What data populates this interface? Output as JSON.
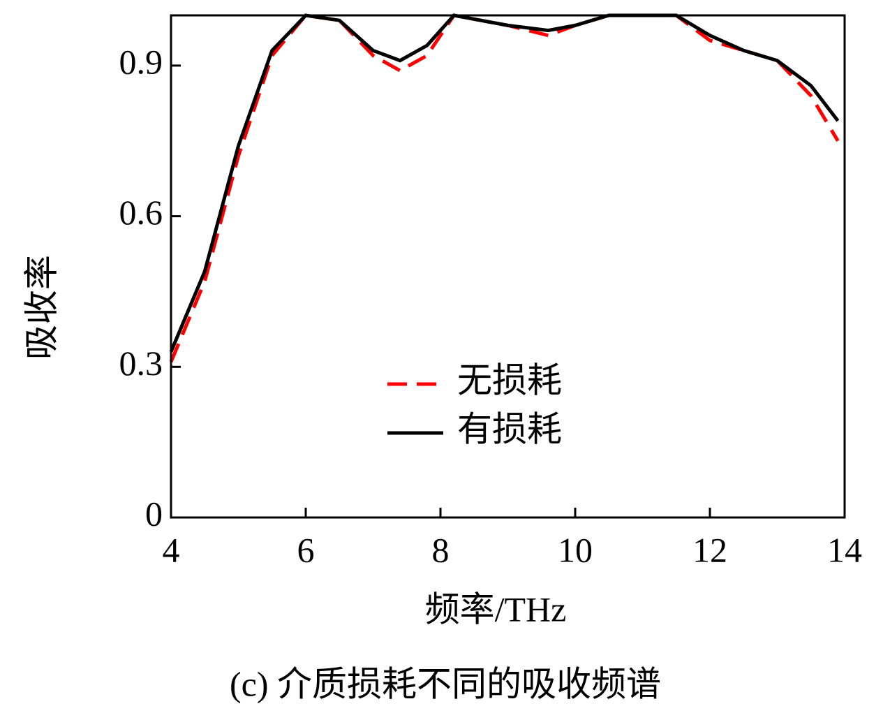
{
  "chart_data": {
    "type": "line",
    "title": "(c) 介质损耗不同的吸收频谱",
    "x_label": "频率/THz",
    "y_label": "吸收率",
    "x": [
      4,
      4.5,
      5,
      5.5,
      6,
      6.5,
      7,
      7.4,
      7.8,
      8.2,
      8.6,
      9,
      9.6,
      10,
      10.5,
      11,
      11.5,
      12,
      12.5,
      13,
      13.5,
      13.9
    ],
    "series": [
      {
        "name": "无损耗",
        "color": "#ff0000",
        "dash": true,
        "values": [
          0.31,
          0.47,
          0.72,
          0.92,
          1.0,
          0.99,
          0.92,
          0.89,
          0.92,
          1.0,
          0.99,
          0.98,
          0.96,
          0.98,
          1.0,
          1.0,
          1.0,
          0.95,
          0.93,
          0.91,
          0.84,
          0.75
        ]
      },
      {
        "name": "有损耗",
        "color": "#000000",
        "dash": false,
        "values": [
          0.33,
          0.49,
          0.74,
          0.93,
          1.0,
          0.99,
          0.93,
          0.91,
          0.94,
          1.0,
          0.99,
          0.98,
          0.97,
          0.98,
          1.0,
          1.0,
          1.0,
          0.96,
          0.93,
          0.91,
          0.86,
          0.79
        ]
      }
    ],
    "xlim": [
      4,
      14
    ],
    "xticks": [
      4,
      6,
      8,
      10,
      12,
      14
    ],
    "ylim": [
      0,
      1
    ],
    "yticks": [
      0,
      0.3,
      0.6,
      0.9
    ]
  }
}
